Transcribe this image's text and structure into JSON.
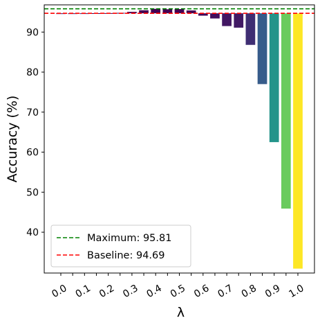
{
  "chart_data": {
    "type": "bar",
    "title": "",
    "xlabel": "λ",
    "ylabel": "Accuracy (%)",
    "baseline": 94.69,
    "x": [
      0.0,
      0.05,
      0.1,
      0.15,
      0.2,
      0.25,
      0.3,
      0.35,
      0.4,
      0.45,
      0.5,
      0.55,
      0.6,
      0.65,
      0.7,
      0.75,
      0.8,
      0.85,
      0.9,
      0.95,
      1.0
    ],
    "values": [
      94.69,
      94.69,
      94.7,
      94.72,
      94.74,
      94.8,
      95.05,
      95.45,
      95.81,
      95.7,
      95.75,
      95.4,
      94.1,
      93.4,
      91.5,
      91.1,
      86.8,
      77.0,
      62.5,
      45.9,
      30.9
    ],
    "x_tick_labels": [
      "0.0",
      "0.1",
      "0.2",
      "0.3",
      "0.4",
      "0.5",
      "0.6",
      "0.7",
      "0.8",
      "0.9",
      "1.0"
    ],
    "x_tick_values": [
      0.0,
      0.1,
      0.2,
      0.3,
      0.4,
      0.5,
      0.6,
      0.7,
      0.8,
      0.9,
      1.0
    ],
    "y_ticks": [
      40,
      50,
      60,
      70,
      80,
      90
    ],
    "xlim": [
      -0.07,
      1.07
    ],
    "ylim": [
      29.8,
      96.8
    ],
    "colormap": [
      "#440154",
      "#3b528b",
      "#21918c",
      "#5ec962",
      "#fde725"
    ],
    "reference_lines": [
      {
        "label": "Maximum: 95.81",
        "value": 95.81,
        "color": "#008000",
        "style": "dashed"
      },
      {
        "label": "Baseline: 94.69",
        "value": 94.69,
        "color": "#ff0000",
        "style": "dashed"
      }
    ],
    "legend_position": "lower-left",
    "grid": false
  }
}
